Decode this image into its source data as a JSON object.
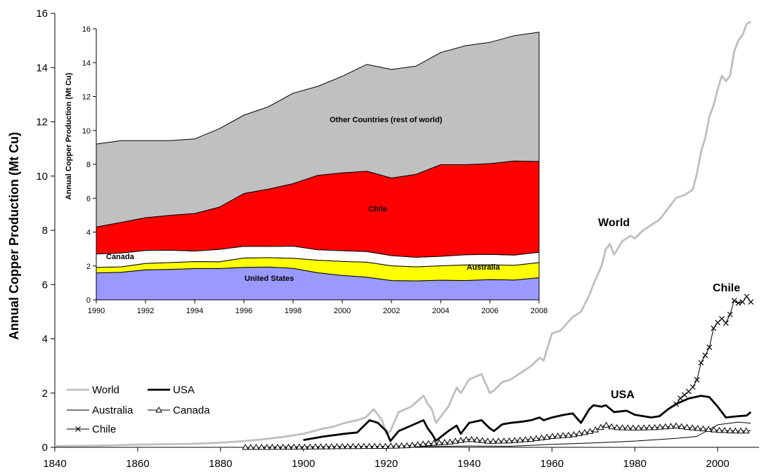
{
  "chart_data": [
    {
      "type": "line",
      "xlabel": "",
      "ylabel": "Annual Copper Production (Mt Cu)",
      "xlim": [
        1840,
        2010
      ],
      "ylim": [
        0,
        16
      ],
      "xticks": [
        1840,
        1860,
        1880,
        1900,
        1920,
        1940,
        1960,
        1980,
        2000
      ],
      "yticks": [
        0,
        2,
        4,
        6,
        8,
        10,
        12,
        14,
        16
      ],
      "grid": false,
      "legend_position": "bottom-left",
      "legend": [
        "World",
        "USA",
        "Australia",
        "Canada",
        "Chile"
      ],
      "labels": {
        "world": "World",
        "usa": "USA",
        "chile": "Chile"
      },
      "series": [
        {
          "name": "World",
          "color": "#bfbfbf",
          "x": [
            1840,
            1850,
            1860,
            1870,
            1875,
            1880,
            1885,
            1890,
            1895,
            1900,
            1905,
            1907,
            1910,
            1913,
            1915,
            1917,
            1919,
            1920,
            1921,
            1923,
            1926,
            1929,
            1930,
            1931,
            1932,
            1933,
            1935,
            1937,
            1938,
            1940,
            1943,
            1945,
            1946,
            1948,
            1950,
            1953,
            1955,
            1957,
            1958,
            1960,
            1962,
            1965,
            1967,
            1969,
            1970,
            1972,
            1973,
            1974,
            1975,
            1977,
            1979,
            1980,
            1982,
            1984,
            1986,
            1988,
            1990,
            1992,
            1994,
            1995,
            1996,
            1997,
            1998,
            1999,
            2000,
            2001,
            2002,
            2003,
            2004,
            2005,
            2006,
            2007,
            2008
          ],
          "y": [
            0.05,
            0.06,
            0.1,
            0.12,
            0.14,
            0.17,
            0.22,
            0.29,
            0.38,
            0.5,
            0.7,
            0.75,
            0.9,
            1.0,
            1.1,
            1.4,
            1.0,
            0.5,
            0.6,
            1.3,
            1.5,
            1.9,
            1.6,
            1.4,
            0.9,
            1.1,
            1.5,
            2.2,
            2.0,
            2.5,
            2.7,
            2.0,
            2.1,
            2.4,
            2.5,
            2.8,
            3.0,
            3.3,
            3.2,
            4.2,
            4.3,
            4.8,
            5.0,
            5.6,
            6.0,
            6.7,
            7.3,
            7.5,
            7.1,
            7.6,
            7.8,
            7.7,
            8.0,
            8.2,
            8.4,
            8.8,
            9.2,
            9.3,
            9.5,
            10.1,
            10.9,
            11.4,
            12.2,
            12.6,
            13.2,
            13.7,
            13.5,
            13.7,
            14.6,
            15.0,
            15.2,
            15.6,
            15.7
          ]
        },
        {
          "name": "USA",
          "color": "#000000",
          "x": [
            1900,
            1905,
            1910,
            1913,
            1916,
            1918,
            1920,
            1921,
            1923,
            1926,
            1929,
            1930,
            1931,
            1932,
            1935,
            1937,
            1938,
            1940,
            1943,
            1945,
            1946,
            1948,
            1950,
            1953,
            1955,
            1957,
            1958,
            1960,
            1963,
            1965,
            1967,
            1969,
            1970,
            1972,
            1973,
            1975,
            1978,
            1980,
            1982,
            1984,
            1986,
            1988,
            1990,
            1993,
            1996,
            1998,
            2000,
            2002,
            2005,
            2007,
            2008
          ],
          "y": [
            0.27,
            0.4,
            0.5,
            0.55,
            1.0,
            0.9,
            0.6,
            0.23,
            0.6,
            0.8,
            1.0,
            0.7,
            0.5,
            0.24,
            0.6,
            0.8,
            0.5,
            0.9,
            1.0,
            0.7,
            0.6,
            0.85,
            0.9,
            0.95,
            1.0,
            1.1,
            1.0,
            1.1,
            1.2,
            1.25,
            0.9,
            1.4,
            1.55,
            1.5,
            1.55,
            1.3,
            1.35,
            1.2,
            1.15,
            1.1,
            1.15,
            1.4,
            1.6,
            1.8,
            1.9,
            1.85,
            1.5,
            1.1,
            1.15,
            1.17,
            1.3
          ]
        },
        {
          "name": "Australia",
          "color": "#000000",
          "x": [
            1890,
            1900,
            1910,
            1920,
            1930,
            1940,
            1950,
            1960,
            1970,
            1980,
            1990,
            1995,
            2000,
            2005,
            2008
          ],
          "y": [
            0.01,
            0.02,
            0.03,
            0.02,
            0.03,
            0.05,
            0.04,
            0.11,
            0.16,
            0.23,
            0.33,
            0.4,
            0.83,
            0.93,
            0.89
          ]
        },
        {
          "name": "Canada",
          "color": "#000000",
          "x": [
            1886,
            1890,
            1900,
            1910,
            1920,
            1925,
            1930,
            1935,
            1940,
            1945,
            1950,
            1955,
            1960,
            1965,
            1970,
            1973,
            1975,
            1980,
            1985,
            1990,
            1993,
            1996,
            2000,
            2005,
            2008
          ],
          "y": [
            0.0,
            0.0,
            0.01,
            0.03,
            0.04,
            0.06,
            0.14,
            0.19,
            0.3,
            0.22,
            0.24,
            0.3,
            0.4,
            0.46,
            0.61,
            0.82,
            0.73,
            0.71,
            0.73,
            0.79,
            0.73,
            0.69,
            0.63,
            0.6,
            0.61
          ]
        },
        {
          "name": "Chile",
          "color": "#000000",
          "x": [
            1990,
            1991,
            1992,
            1993,
            1994,
            1995,
            1996,
            1997,
            1998,
            1999,
            2000,
            2001,
            2002,
            2003,
            2004,
            2005,
            2006,
            2007,
            2008
          ],
          "y": [
            1.59,
            1.81,
            1.93,
            2.06,
            2.22,
            2.49,
            3.12,
            3.39,
            3.69,
            4.39,
            4.6,
            4.74,
            4.58,
            4.9,
            5.41,
            5.32,
            5.36,
            5.56,
            5.36
          ]
        }
      ]
    },
    {
      "type": "area",
      "xlabel": "",
      "ylabel": "Annual Copper Production (Mt Cu)",
      "xlim": [
        1990,
        2008
      ],
      "ylim": [
        0,
        16
      ],
      "xticks": [
        1990,
        1992,
        1994,
        1996,
        1998,
        2000,
        2002,
        2004,
        2006,
        2008
      ],
      "yticks": [
        0,
        2,
        4,
        6,
        8,
        10,
        12,
        14,
        16
      ],
      "grid": false,
      "stacked": true,
      "x": [
        1990,
        1991,
        1992,
        1993,
        1994,
        1995,
        1996,
        1997,
        1998,
        1999,
        2000,
        2001,
        2002,
        2003,
        2004,
        2005,
        2006,
        2007,
        2008
      ],
      "series": [
        {
          "name": "United States",
          "color": "#9999ff",
          "values": [
            1.59,
            1.63,
            1.77,
            1.8,
            1.85,
            1.85,
            1.92,
            1.94,
            1.86,
            1.6,
            1.44,
            1.34,
            1.14,
            1.12,
            1.16,
            1.14,
            1.2,
            1.17,
            1.31
          ]
        },
        {
          "name": "Australia",
          "color": "#ffff00",
          "values": [
            0.33,
            0.32,
            0.38,
            0.4,
            0.41,
            0.4,
            0.55,
            0.55,
            0.6,
            0.74,
            0.83,
            0.88,
            0.87,
            0.83,
            0.85,
            0.92,
            0.87,
            0.87,
            0.89
          ]
        },
        {
          "name": "Canada",
          "color": "#ffffff",
          "values": [
            0.79,
            0.81,
            0.77,
            0.73,
            0.62,
            0.73,
            0.69,
            0.66,
            0.71,
            0.62,
            0.63,
            0.63,
            0.6,
            0.56,
            0.56,
            0.6,
            0.61,
            0.6,
            0.61
          ]
        },
        {
          "name": "Chile",
          "color": "#ff0000",
          "values": [
            1.59,
            1.81,
            1.93,
            2.06,
            2.22,
            2.49,
            3.12,
            3.39,
            3.69,
            4.39,
            4.6,
            4.74,
            4.58,
            4.9,
            5.41,
            5.32,
            5.36,
            5.56,
            5.36
          ]
        },
        {
          "name": "Other Countries  (rest of world)",
          "color": "#c0c0c0",
          "values": [
            4.9,
            4.83,
            4.55,
            4.41,
            4.4,
            4.63,
            4.62,
            4.86,
            5.34,
            5.25,
            5.7,
            6.31,
            6.41,
            6.39,
            6.62,
            7.02,
            7.16,
            7.4,
            7.63
          ]
        }
      ],
      "labels": {
        "us": "United States",
        "australia": "Australia",
        "canada": "Canada",
        "chile": "Chile",
        "other": "Other Countries  (rest of world)"
      }
    }
  ]
}
